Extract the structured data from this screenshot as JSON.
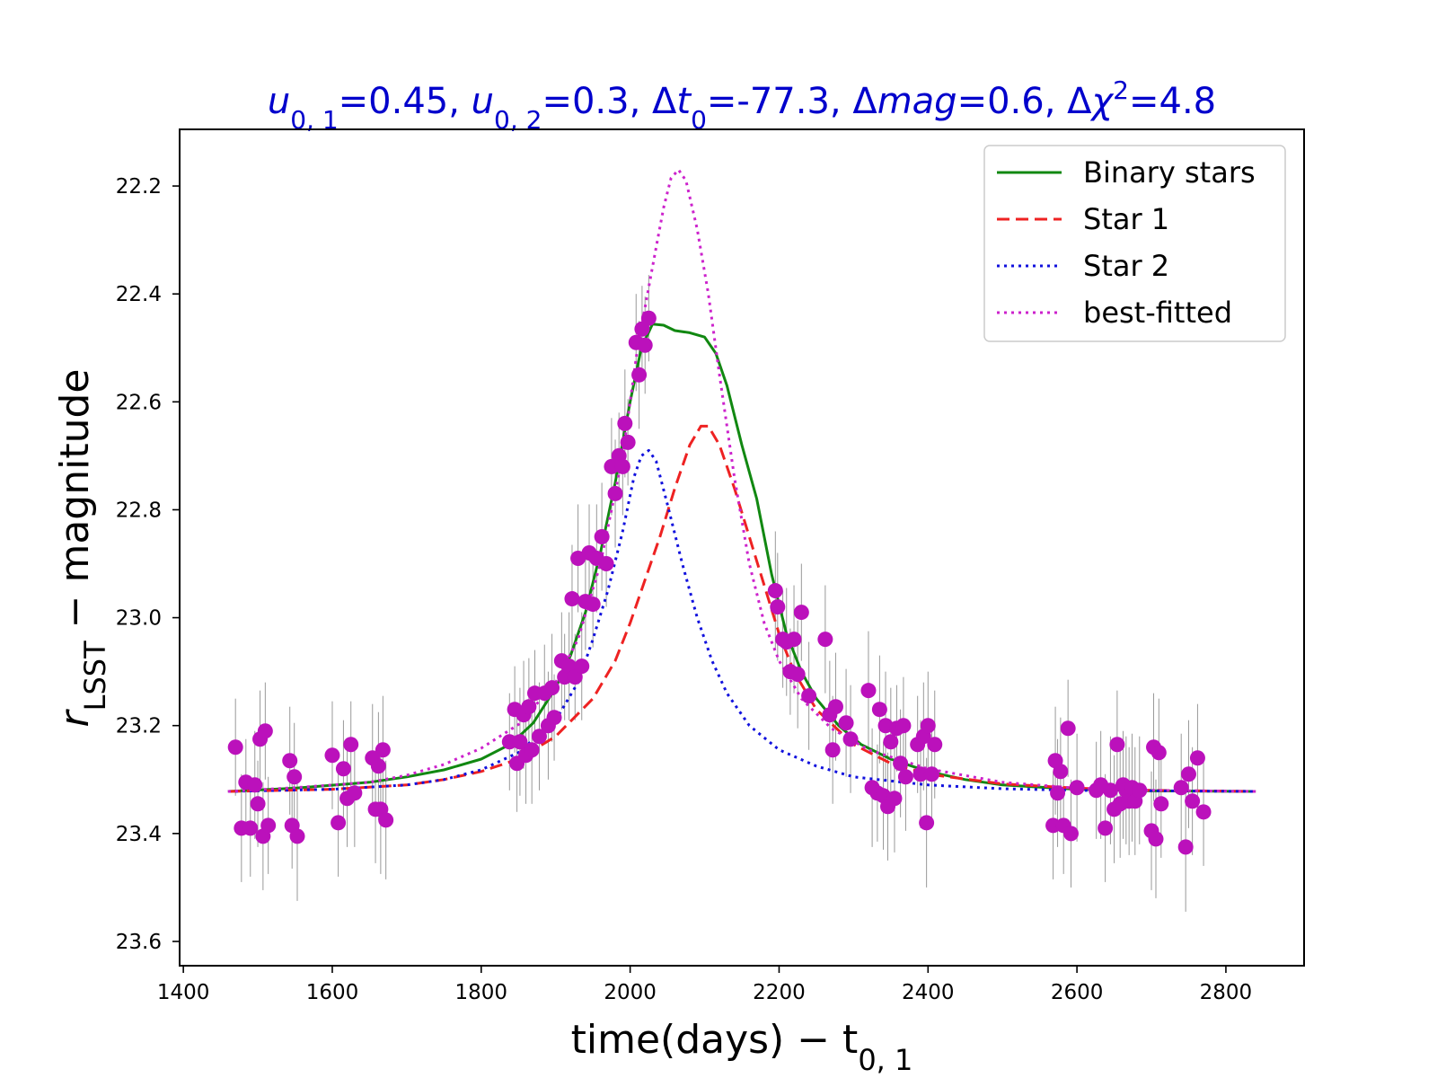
{
  "chart_data": {
    "type": "scatter",
    "title": {
      "segments": [
        {
          "t": "u",
          "italic": true
        },
        {
          "t": "0, 1",
          "sub": true
        },
        {
          "t": "=0.45,  "
        },
        {
          "t": "u",
          "italic": true
        },
        {
          "t": "0, 2",
          "sub": true
        },
        {
          "t": "=0.3,  Δ"
        },
        {
          "t": "t",
          "italic": true
        },
        {
          "t": "0",
          "sub": true
        },
        {
          "t": "=-77.3,  Δ"
        },
        {
          "t": "mag",
          "italic": true
        },
        {
          "t": "=0.6,  Δ"
        },
        {
          "t": "χ",
          "italic": true
        },
        {
          "t": "2",
          "sup": true
        },
        {
          "t": "=4.8"
        }
      ]
    },
    "xlabel": {
      "main": "time(days) − t",
      "sub": "0, 1"
    },
    "ylabel": {
      "main": "r",
      "sub": "LSST",
      "rest": " − magnitude"
    },
    "xlim": [
      1395,
      2905
    ],
    "ylim": [
      23.645,
      22.095
    ],
    "y_inverted": true,
    "xticks": [
      1400,
      1600,
      1800,
      2000,
      2200,
      2400,
      2600,
      2800
    ],
    "xtick_labels": [
      "1400",
      "1600",
      "1800",
      "2000",
      "2200",
      "2400",
      "2600",
      "2800"
    ],
    "yticks": [
      22.2,
      22.4,
      22.6,
      22.8,
      23.0,
      23.2,
      23.4,
      23.6
    ],
    "ytick_labels": [
      "22.2",
      "22.4",
      "22.6",
      "22.8",
      "23.0",
      "23.2",
      "23.4",
      "23.6"
    ],
    "grid": false,
    "legend_position": "top-right",
    "legend": [
      {
        "label": "Binary stars",
        "color": "#118811",
        "dash": "solid"
      },
      {
        "label": "Star 1",
        "color": "#ee2222",
        "dash": "dashed"
      },
      {
        "label": "Star 2",
        "color": "#1111dd",
        "dash": "dotted"
      },
      {
        "label": "best-fitted",
        "color": "#cc22cc",
        "dash": "dotted"
      }
    ],
    "series": [
      {
        "name": "Binary stars",
        "type": "line",
        "color": "#118811",
        "dash": "solid",
        "points": [
          [
            1460,
            23.322
          ],
          [
            1550,
            23.316
          ],
          [
            1650,
            23.305
          ],
          [
            1700,
            23.295
          ],
          [
            1750,
            23.282
          ],
          [
            1800,
            23.262
          ],
          [
            1840,
            23.234
          ],
          [
            1870,
            23.195
          ],
          [
            1900,
            23.13
          ],
          [
            1920,
            23.07
          ],
          [
            1940,
            22.99
          ],
          [
            1960,
            22.88
          ],
          [
            1980,
            22.75
          ],
          [
            2000,
            22.6
          ],
          [
            2015,
            22.5
          ],
          [
            2030,
            22.456
          ],
          [
            2045,
            22.458
          ],
          [
            2060,
            22.468
          ],
          [
            2080,
            22.472
          ],
          [
            2100,
            22.48
          ],
          [
            2115,
            22.51
          ],
          [
            2130,
            22.57
          ],
          [
            2150,
            22.68
          ],
          [
            2170,
            22.78
          ],
          [
            2190,
            22.92
          ],
          [
            2210,
            23.03
          ],
          [
            2230,
            23.1
          ],
          [
            2250,
            23.15
          ],
          [
            2280,
            23.2
          ],
          [
            2310,
            23.235
          ],
          [
            2350,
            23.262
          ],
          [
            2400,
            23.285
          ],
          [
            2450,
            23.3
          ],
          [
            2500,
            23.31
          ],
          [
            2600,
            23.318
          ],
          [
            2700,
            23.321
          ],
          [
            2840,
            23.322
          ]
        ]
      },
      {
        "name": "Star 1",
        "type": "line",
        "color": "#ee2222",
        "dash": "dashed",
        "points": [
          [
            1460,
            23.322
          ],
          [
            1600,
            23.318
          ],
          [
            1700,
            23.31
          ],
          [
            1750,
            23.3
          ],
          [
            1800,
            23.285
          ],
          [
            1850,
            23.262
          ],
          [
            1900,
            23.22
          ],
          [
            1950,
            23.15
          ],
          [
            1980,
            23.08
          ],
          [
            2000,
            23.01
          ],
          [
            2020,
            22.93
          ],
          [
            2040,
            22.85
          ],
          [
            2060,
            22.76
          ],
          [
            2080,
            22.68
          ],
          [
            2095,
            22.645
          ],
          [
            2105,
            22.645
          ],
          [
            2120,
            22.68
          ],
          [
            2140,
            22.76
          ],
          [
            2160,
            22.85
          ],
          [
            2180,
            22.94
          ],
          [
            2200,
            23.03
          ],
          [
            2220,
            23.1
          ],
          [
            2250,
            23.17
          ],
          [
            2300,
            23.235
          ],
          [
            2350,
            23.27
          ],
          [
            2400,
            23.29
          ],
          [
            2500,
            23.308
          ],
          [
            2600,
            23.316
          ],
          [
            2700,
            23.32
          ],
          [
            2840,
            23.322
          ]
        ]
      },
      {
        "name": "Star 2",
        "type": "line",
        "color": "#1111dd",
        "dash": "dotted",
        "points": [
          [
            1460,
            23.322
          ],
          [
            1600,
            23.318
          ],
          [
            1700,
            23.31
          ],
          [
            1750,
            23.3
          ],
          [
            1800,
            23.282
          ],
          [
            1850,
            23.25
          ],
          [
            1900,
            23.19
          ],
          [
            1930,
            23.12
          ],
          [
            1950,
            23.04
          ],
          [
            1970,
            22.95
          ],
          [
            1990,
            22.84
          ],
          [
            2005,
            22.74
          ],
          [
            2015,
            22.7
          ],
          [
            2025,
            22.69
          ],
          [
            2035,
            22.71
          ],
          [
            2050,
            22.79
          ],
          [
            2070,
            22.9
          ],
          [
            2090,
            23.0
          ],
          [
            2110,
            23.08
          ],
          [
            2130,
            23.14
          ],
          [
            2160,
            23.2
          ],
          [
            2200,
            23.245
          ],
          [
            2250,
            23.275
          ],
          [
            2300,
            23.295
          ],
          [
            2400,
            23.31
          ],
          [
            2500,
            23.317
          ],
          [
            2600,
            23.32
          ],
          [
            2840,
            23.322
          ]
        ]
      },
      {
        "name": "best-fitted",
        "type": "line",
        "color": "#cc22cc",
        "dash": "dotted",
        "points": [
          [
            1460,
            23.322
          ],
          [
            1550,
            23.315
          ],
          [
            1650,
            23.305
          ],
          [
            1700,
            23.292
          ],
          [
            1750,
            23.272
          ],
          [
            1800,
            23.242
          ],
          [
            1850,
            23.198
          ],
          [
            1900,
            23.12
          ],
          [
            1930,
            23.04
          ],
          [
            1960,
            22.9
          ],
          [
            1990,
            22.7
          ],
          [
            2010,
            22.5
          ],
          [
            2030,
            22.35
          ],
          [
            2045,
            22.24
          ],
          [
            2055,
            22.185
          ],
          [
            2065,
            22.17
          ],
          [
            2075,
            22.19
          ],
          [
            2090,
            22.28
          ],
          [
            2105,
            22.4
          ],
          [
            2120,
            22.55
          ],
          [
            2140,
            22.74
          ],
          [
            2160,
            22.9
          ],
          [
            2180,
            23.01
          ],
          [
            2200,
            23.08
          ],
          [
            2230,
            23.15
          ],
          [
            2270,
            23.205
          ],
          [
            2320,
            23.245
          ],
          [
            2400,
            23.28
          ],
          [
            2500,
            23.305
          ],
          [
            2600,
            23.316
          ],
          [
            2700,
            23.32
          ],
          [
            2840,
            23.322
          ]
        ]
      }
    ],
    "observations": {
      "name": "data",
      "color": "#bb11bb",
      "errorbar_color": "#999999",
      "points": [
        [
          1470,
          23.24,
          0.09
        ],
        [
          1478,
          23.39,
          0.1
        ],
        [
          1484,
          23.305,
          0.08
        ],
        [
          1490,
          23.39,
          0.09
        ],
        [
          1496,
          23.31,
          0.1
        ],
        [
          1500,
          23.345,
          0.08
        ],
        [
          1503,
          23.225,
          0.09
        ],
        [
          1507,
          23.405,
          0.1
        ],
        [
          1510,
          23.21,
          0.09
        ],
        [
          1514,
          23.385,
          0.09
        ],
        [
          1543,
          23.265,
          0.1
        ],
        [
          1546,
          23.385,
          0.08
        ],
        [
          1549,
          23.295,
          0.1
        ],
        [
          1553,
          23.405,
          0.12
        ],
        [
          1600,
          23.255,
          0.1
        ],
        [
          1608,
          23.38,
          0.1
        ],
        [
          1615,
          23.28,
          0.09
        ],
        [
          1620,
          23.335,
          0.09
        ],
        [
          1625,
          23.235,
          0.08
        ],
        [
          1630,
          23.325,
          0.1
        ],
        [
          1654,
          23.26,
          0.1
        ],
        [
          1658,
          23.355,
          0.1
        ],
        [
          1662,
          23.275,
          0.1
        ],
        [
          1665,
          23.355,
          0.12
        ],
        [
          1668,
          23.245,
          0.1
        ],
        [
          1672,
          23.375,
          0.11
        ],
        [
          1838,
          23.23,
          0.09
        ],
        [
          1845,
          23.17,
          0.08
        ],
        [
          1848,
          23.27,
          0.09
        ],
        [
          1852,
          23.23,
          0.1
        ],
        [
          1857,
          23.18,
          0.1
        ],
        [
          1860,
          23.255,
          0.09
        ],
        [
          1864,
          23.165,
          0.09
        ],
        [
          1868,
          23.245,
          0.1
        ],
        [
          1872,
          23.14,
          0.08
        ],
        [
          1878,
          23.22,
          0.1
        ],
        [
          1885,
          23.14,
          0.09
        ],
        [
          1890,
          23.2,
          0.1
        ],
        [
          1895,
          23.13,
          0.1
        ],
        [
          1898,
          23.185,
          0.08
        ],
        [
          1908,
          23.08,
          0.09
        ],
        [
          1912,
          23.11,
          0.08
        ],
        [
          1918,
          23.09,
          0.1
        ],
        [
          1922,
          22.965,
          0.1
        ],
        [
          1926,
          23.11,
          0.08
        ],
        [
          1930,
          22.89,
          0.1
        ],
        [
          1935,
          23.09,
          0.1
        ],
        [
          1940,
          22.97,
          0.09
        ],
        [
          1945,
          22.88,
          0.09
        ],
        [
          1950,
          22.975,
          0.08
        ],
        [
          1955,
          22.89,
          0.1
        ],
        [
          1962,
          22.85,
          0.1
        ],
        [
          1968,
          22.9,
          0.08
        ],
        [
          1975,
          22.72,
          0.09
        ],
        [
          1980,
          22.77,
          0.1
        ],
        [
          1985,
          22.7,
          0.08
        ],
        [
          1990,
          22.72,
          0.09
        ],
        [
          1993,
          22.64,
          0.1
        ],
        [
          1997,
          22.675,
          0.08
        ],
        [
          2008,
          22.49,
          0.09
        ],
        [
          2012,
          22.55,
          0.1
        ],
        [
          2016,
          22.465,
          0.08
        ],
        [
          2020,
          22.495,
          0.09
        ],
        [
          2025,
          22.445,
          0.08
        ],
        [
          2195,
          22.95,
          0.11
        ],
        [
          2198,
          22.98,
          0.1
        ],
        [
          2205,
          23.04,
          0.09
        ],
        [
          2210,
          23.045,
          0.1
        ],
        [
          2215,
          23.1,
          0.08
        ],
        [
          2220,
          23.04,
          0.1
        ],
        [
          2225,
          23.105,
          0.1
        ],
        [
          2230,
          22.99,
          0.09
        ],
        [
          2240,
          23.145,
          0.1
        ],
        [
          2262,
          23.04,
          0.1
        ],
        [
          2268,
          23.18,
          0.1
        ],
        [
          2272,
          23.245,
          0.1
        ],
        [
          2276,
          23.165,
          0.1
        ],
        [
          2290,
          23.195,
          0.1
        ],
        [
          2296,
          23.225,
          0.1
        ],
        [
          2320,
          23.135,
          0.11
        ],
        [
          2325,
          23.315,
          0.11
        ],
        [
          2332,
          23.325,
          0.09
        ],
        [
          2335,
          23.17,
          0.1
        ],
        [
          2340,
          23.33,
          0.1
        ],
        [
          2343,
          23.2,
          0.1
        ],
        [
          2346,
          23.35,
          0.1
        ],
        [
          2350,
          23.23,
          0.1
        ],
        [
          2355,
          23.335,
          0.1
        ],
        [
          2358,
          23.205,
          0.08
        ],
        [
          2363,
          23.27,
          0.1
        ],
        [
          2367,
          23.2,
          0.09
        ],
        [
          2370,
          23.295,
          0.1
        ],
        [
          2386,
          23.235,
          0.09
        ],
        [
          2390,
          23.29,
          0.1
        ],
        [
          2394,
          23.22,
          0.1
        ],
        [
          2398,
          23.38,
          0.12
        ],
        [
          2400,
          23.2,
          0.1
        ],
        [
          2405,
          23.29,
          0.1
        ],
        [
          2409,
          23.235,
          0.1
        ],
        [
          2568,
          23.385,
          0.1
        ],
        [
          2571,
          23.265,
          0.1
        ],
        [
          2574,
          23.325,
          0.1
        ],
        [
          2578,
          23.285,
          0.1
        ],
        [
          2582,
          23.385,
          0.09
        ],
        [
          2588,
          23.205,
          0.09
        ],
        [
          2592,
          23.4,
          0.1
        ],
        [
          2600,
          23.315,
          0.1
        ],
        [
          2626,
          23.32,
          0.09
        ],
        [
          2632,
          23.31,
          0.1
        ],
        [
          2638,
          23.39,
          0.1
        ],
        [
          2645,
          23.32,
          0.1
        ],
        [
          2650,
          23.355,
          0.1
        ],
        [
          2654,
          23.235,
          0.1
        ],
        [
          2658,
          23.345,
          0.1
        ],
        [
          2662,
          23.31,
          0.1
        ],
        [
          2666,
          23.32,
          0.1
        ],
        [
          2670,
          23.34,
          0.1
        ],
        [
          2674,
          23.315,
          0.1
        ],
        [
          2678,
          23.34,
          0.1
        ],
        [
          2684,
          23.32,
          0.1
        ],
        [
          2700,
          23.395,
          0.11
        ],
        [
          2703,
          23.24,
          0.1
        ],
        [
          2706,
          23.41,
          0.11
        ],
        [
          2710,
          23.25,
          0.1
        ],
        [
          2713,
          23.345,
          0.1
        ],
        [
          2740,
          23.315,
          0.1
        ],
        [
          2746,
          23.425,
          0.12
        ],
        [
          2750,
          23.29,
          0.1
        ],
        [
          2755,
          23.34,
          0.1
        ],
        [
          2762,
          23.26,
          0.1
        ],
        [
          2770,
          23.36,
          0.1
        ]
      ]
    }
  }
}
